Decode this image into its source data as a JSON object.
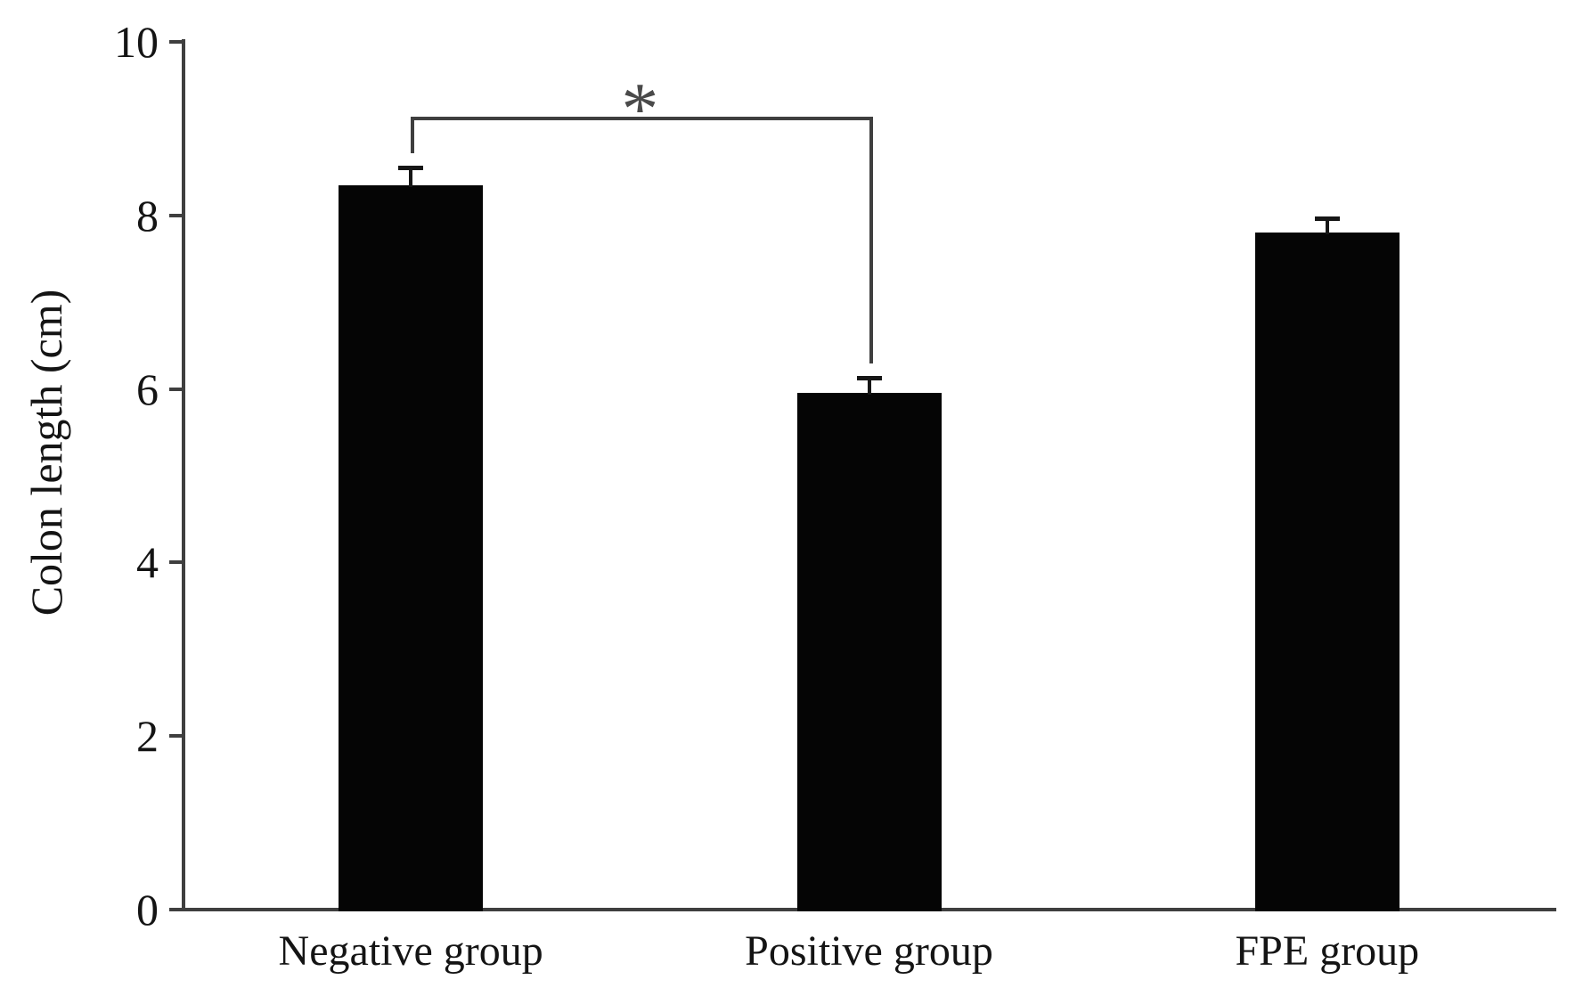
{
  "figure": {
    "background": "#ffffff",
    "bar_color": "#050505",
    "axis_color": "#3f3f3f",
    "text_color": "#141414"
  },
  "chart_data": {
    "type": "bar",
    "title": "",
    "xlabel": "",
    "ylabel": "Colon length (cm)",
    "categories": [
      "Negative group",
      "Positive group",
      "FPE group"
    ],
    "values": [
      8.35,
      5.95,
      7.8
    ],
    "errors": [
      0.2,
      0.18,
      0.17
    ],
    "ylim": [
      0,
      10
    ],
    "yticks": [
      0,
      2,
      4,
      6,
      8,
      10
    ],
    "grid": false,
    "legend_position": "none",
    "significance": {
      "from": "Negative group",
      "to": "Positive group",
      "label": "*"
    }
  }
}
